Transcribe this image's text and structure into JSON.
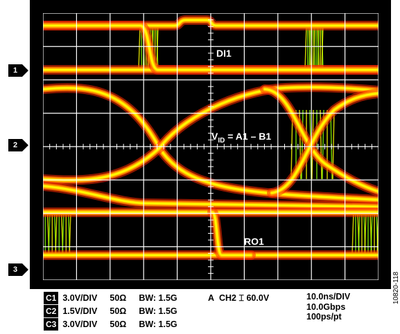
{
  "display": {
    "channel_markers": [
      "1",
      "2",
      "3"
    ],
    "trace_labels": {
      "di1": "DI1",
      "vid_main": "V",
      "vid_sub": "ID",
      "vid_rest": " = A1 – B1",
      "ro1": "RO1"
    },
    "trace_colors": {
      "core": "#ffff00",
      "inner": "#ffcc00",
      "mid": "#ff7700",
      "outer": "#ff2a00",
      "eye": "#88ff00"
    }
  },
  "settings": {
    "channels": [
      {
        "id": "C1",
        "vdiv": "3.0V/DIV",
        "impedance": "50Ω",
        "bw": "BW: 1.5G"
      },
      {
        "id": "C2",
        "vdiv": "1.5V/DIV",
        "impedance": "50Ω",
        "bw": "BW: 1.5G"
      },
      {
        "id": "C3",
        "vdiv": "3.0V/DIV",
        "impedance": "50Ω",
        "bw": "BW: 1.5G"
      }
    ],
    "trigger": {
      "mode": "A",
      "channel": "CH2",
      "symbol": "⌶",
      "level": "60.0V"
    },
    "timebase": {
      "tdiv": "10.0ns/DIV",
      "rate": "10.0Gbps",
      "resolution": "100ps/pt"
    }
  },
  "figure_id": "10820-118"
}
